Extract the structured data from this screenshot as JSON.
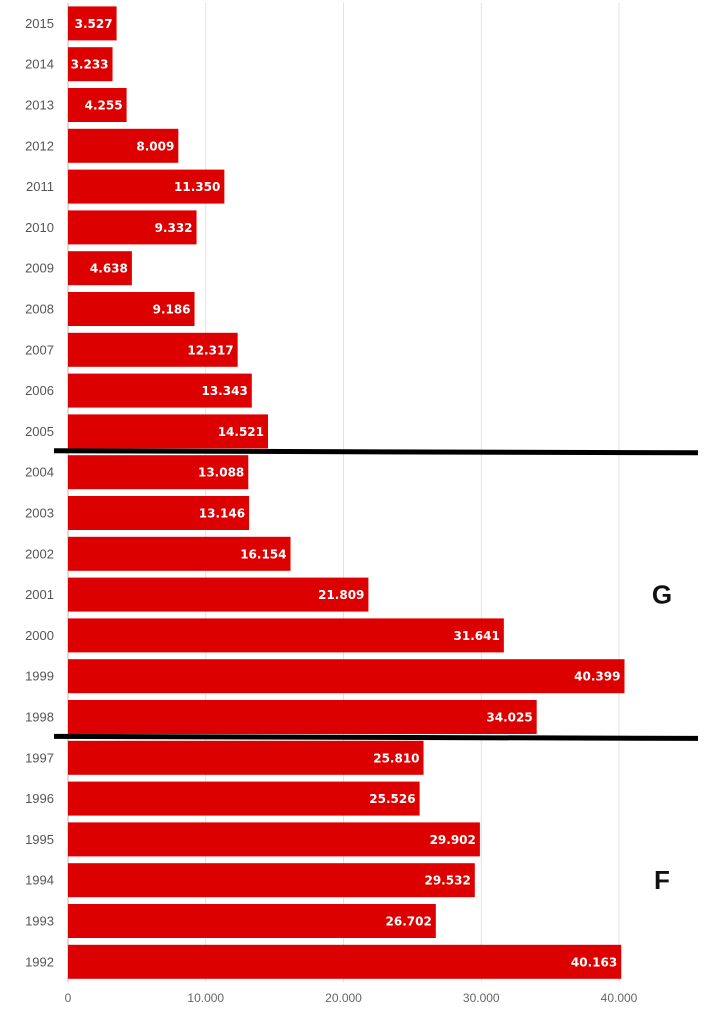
{
  "chart_data": {
    "type": "bar",
    "orientation": "horizontal",
    "title": "",
    "xlabel": "",
    "ylabel": "",
    "bar_color": "#dd0000",
    "xlim": [
      0,
      46000
    ],
    "xticks": [
      0,
      10000,
      20000,
      30000,
      40000
    ],
    "xtick_labels": [
      "0",
      "10.000",
      "20.000",
      "30.000",
      "40.000"
    ],
    "grid": "vertical",
    "categories": [
      "2015",
      "2014",
      "2013",
      "2012",
      "2011",
      "2010",
      "2009",
      "2008",
      "2007",
      "2006",
      "2005",
      "2004",
      "2003",
      "2002",
      "2001",
      "2000",
      "1999",
      "1998",
      "1997",
      "1996",
      "1995",
      "1994",
      "1993",
      "1992"
    ],
    "values": [
      3527,
      3233,
      4255,
      8009,
      11350,
      9332,
      4638,
      9186,
      12317,
      13343,
      14521,
      13088,
      13146,
      16154,
      21809,
      31641,
      40399,
      34025,
      25810,
      25526,
      29902,
      29532,
      26702,
      40163
    ],
    "value_labels": [
      "3.527",
      "3.233",
      "4.255",
      "8.009",
      "11.350",
      "9.332",
      "4.638",
      "9.186",
      "12.317",
      "13.343",
      "14.521",
      "13.088",
      "13.146",
      "16.154",
      "21.809",
      "31.641",
      "40.399",
      "34.025",
      "25.810",
      "25.526",
      "29.902",
      "29.532",
      "26.702",
      "40.163"
    ],
    "separators_after": [
      "2005",
      "1998"
    ],
    "region_labels": [
      {
        "text": "G",
        "next_to": "2001"
      },
      {
        "text": "F",
        "next_to": "1994"
      }
    ]
  }
}
